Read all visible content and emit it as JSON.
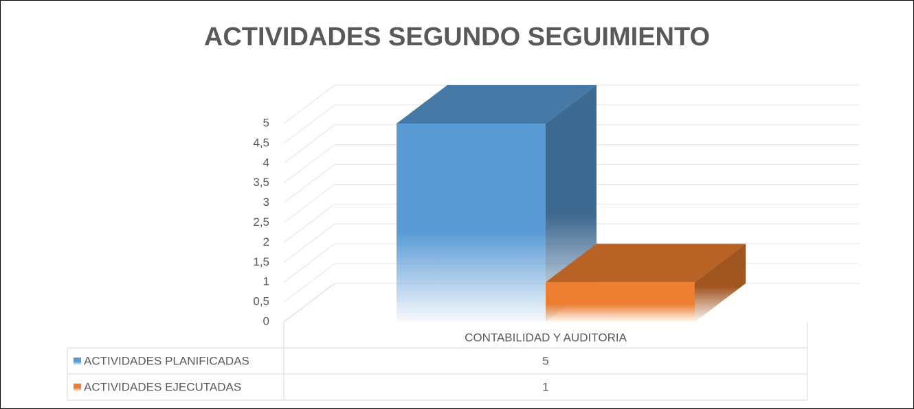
{
  "chart_data": {
    "type": "bar3d",
    "title": "ACTIVIDADES SEGUNDO SEGUIMIENTO",
    "categories": [
      "CONTABILIDAD Y AUDITORIA"
    ],
    "series": [
      {
        "name": "ACTIVIDADES PLANIFICADAS",
        "color": "#5b9bd5",
        "values": [
          5
        ]
      },
      {
        "name": "ACTIVIDADES EJECUTADAS",
        "color": "#ed7d31",
        "values": [
          1
        ]
      }
    ],
    "ylim": [
      0,
      5
    ],
    "yticks": [
      0,
      {
        "value": 0.5,
        "label": "0,5"
      },
      1,
      {
        "value": 1.5,
        "label": "1,5"
      },
      2,
      {
        "value": 2.5,
        "label": "2,5"
      },
      3,
      {
        "value": 3.5,
        "label": "3,5"
      },
      4,
      {
        "value": 4.5,
        "label": "4,5"
      },
      5
    ],
    "grid": true
  }
}
